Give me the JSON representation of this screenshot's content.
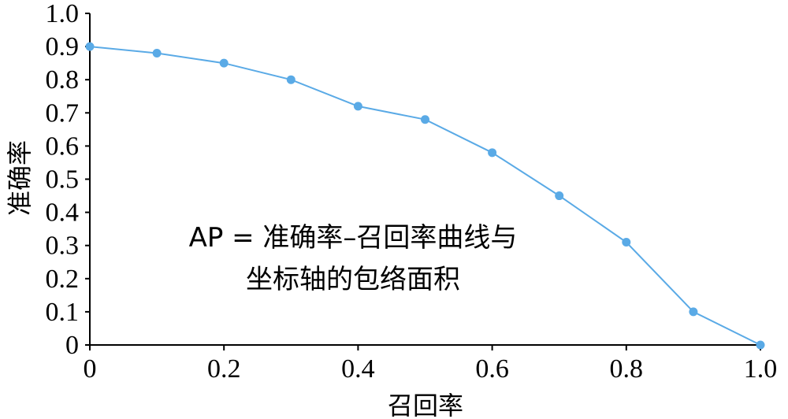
{
  "chart_data": {
    "type": "line",
    "title": "",
    "xlabel": "召回率",
    "ylabel": "准确率",
    "xlim": [
      0,
      1.0
    ],
    "ylim": [
      0,
      1.0
    ],
    "x_ticks": [
      "0",
      "0.2",
      "0.4",
      "0.6",
      "0.8",
      "1.0"
    ],
    "y_ticks": [
      "0",
      "0.1",
      "0.2",
      "0.3",
      "0.4",
      "0.5",
      "0.6",
      "0.7",
      "0.8",
      "0.9",
      "1.0"
    ],
    "grid": false,
    "legend": "none",
    "series": [
      {
        "color": "#5aaae6",
        "x": [
          0.0,
          0.1,
          0.2,
          0.3,
          0.4,
          0.5,
          0.6,
          0.7,
          0.8,
          0.9,
          1.0
        ],
        "y": [
          0.9,
          0.88,
          0.85,
          0.8,
          0.72,
          0.68,
          0.58,
          0.45,
          0.31,
          0.1,
          0.0
        ]
      }
    ],
    "annotation": {
      "line1": "AP = 准确率–召回率曲线与",
      "line2": "坐标轴的包络面积"
    }
  }
}
